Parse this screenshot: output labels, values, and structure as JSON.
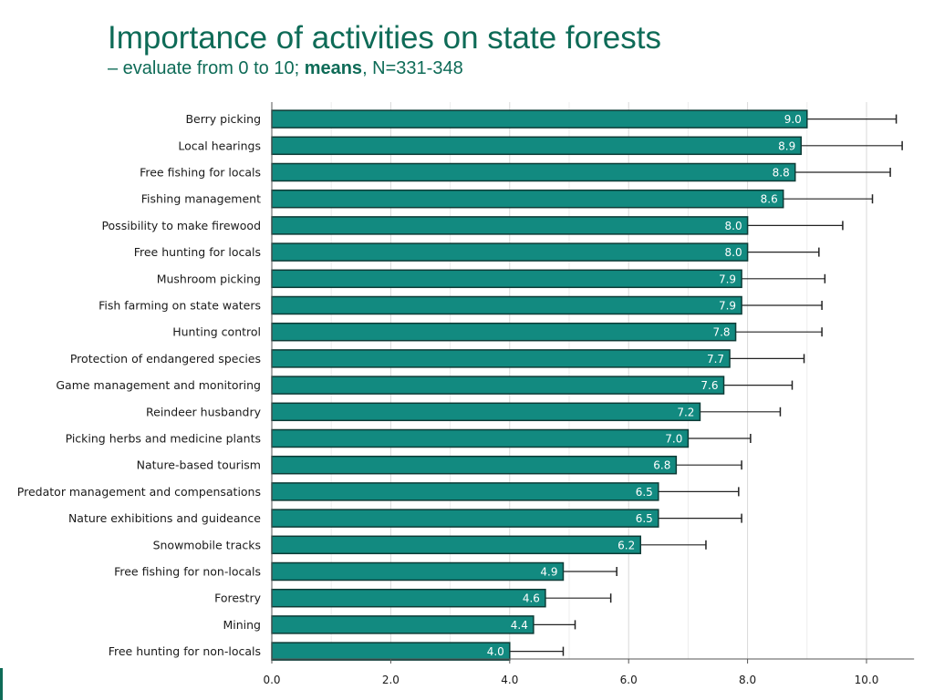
{
  "header": {
    "title": "Importance of activities on state forests",
    "subtitle_prefix": "– evaluate from 0 to 10; ",
    "subtitle_bold": "means",
    "subtitle_suffix": ", N=331-348"
  },
  "colors": {
    "bar_fill": "#128a80",
    "bar_stroke": "#0d3b36",
    "title": "#0e6b57",
    "grid": "#d9d9d9"
  },
  "chart_data": {
    "type": "bar",
    "orientation": "horizontal",
    "title": "Importance of activities on state forests",
    "subtitle": "– evaluate from 0 to 10; means, N=331-348",
    "xlabel": "",
    "ylabel": "",
    "xlim": [
      0,
      10.5
    ],
    "x_ticks": [
      "0.0",
      "2.0",
      "4.0",
      "6.0",
      "8.0",
      "10.0"
    ],
    "grid": "vertical gridlines",
    "error_bars": true,
    "categories": [
      "Berry picking",
      "Local hearings",
      "Free fishing for locals",
      "Fishing management",
      "Possibility to make firewood",
      "Free hunting for locals",
      "Mushroom picking",
      "Fish farming on state waters",
      "Hunting control",
      "Protection of endangered species",
      "Game management and monitoring",
      "Reindeer husbandry",
      "Picking herbs and medicine plants",
      "Nature-based tourism",
      "Predator management and compensations",
      "Nature exhibitions and guideance",
      "Snowmobile tracks",
      "Free fishing for non-locals",
      "Forestry",
      "Mining",
      "Free hunting for non-locals"
    ],
    "values": [
      9.0,
      8.9,
      8.8,
      8.6,
      8.0,
      8.0,
      7.9,
      7.9,
      7.8,
      7.7,
      7.6,
      7.2,
      7.0,
      6.8,
      6.5,
      6.5,
      6.2,
      4.9,
      4.6,
      4.4,
      4.0
    ],
    "value_labels": [
      "9.0",
      "8.9",
      "8.8",
      "8.6",
      "8.0",
      "8.0",
      "7.9",
      "7.9",
      "7.8",
      "7.7",
      "7.6",
      "7.2",
      "7.0",
      "6.8",
      "6.5",
      "6.5",
      "6.2",
      "4.9",
      "4.6",
      "4.4",
      "4.0"
    ],
    "error_upper": [
      10.5,
      10.6,
      10.4,
      10.1,
      9.6,
      9.2,
      9.3,
      9.25,
      9.25,
      8.95,
      8.75,
      8.55,
      8.05,
      7.9,
      7.85,
      7.9,
      7.3,
      5.8,
      5.7,
      5.1,
      4.9
    ]
  }
}
